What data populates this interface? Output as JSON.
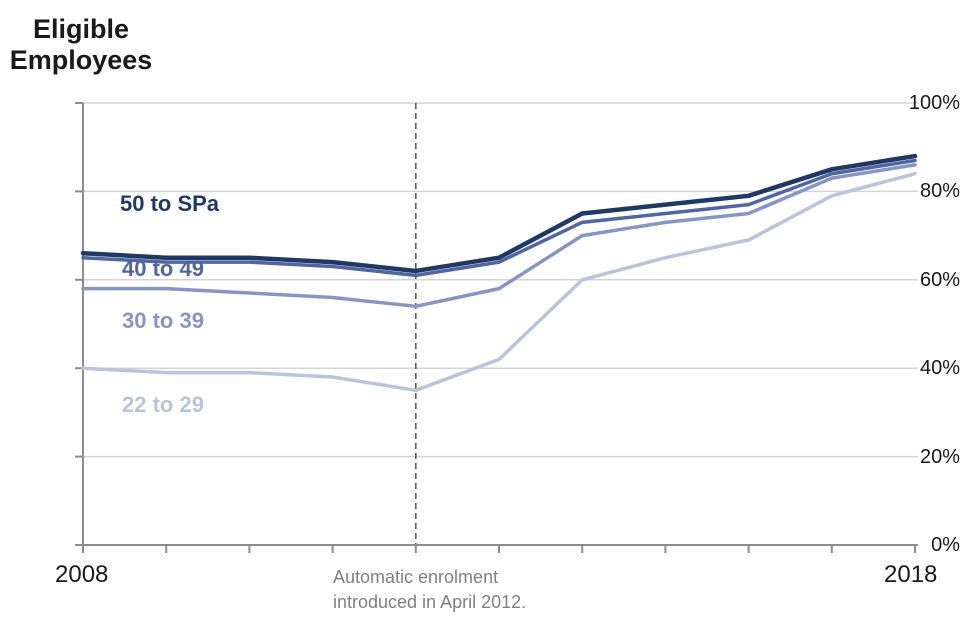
{
  "title": "Eligible\nEmployees",
  "annotation": {
    "line1": "Automatic enrolment",
    "line2": "introduced in April 2012."
  },
  "x_axis": {
    "start_label": "2008",
    "end_label": "2018"
  },
  "y_axis": {
    "tick_labels": [
      "100%",
      "80%",
      "60%",
      "40%",
      "20%",
      "0%"
    ]
  },
  "colors": {
    "axis": "#8c8c8c",
    "gridline": "#d4d4d4",
    "dashed_vline": "#595959",
    "annotation_text": "#808080",
    "axis_text": "#1a1a1a"
  },
  "chart_data": {
    "type": "line",
    "title": "Eligible Employees",
    "xlabel": "",
    "ylabel": "Eligible Employees (%)",
    "x": [
      2008,
      2009,
      2010,
      2011,
      2012,
      2013,
      2014,
      2015,
      2016,
      2017,
      2018
    ],
    "xlim": [
      2008,
      2018
    ],
    "ylim": [
      0,
      100
    ],
    "y_tick_step": 20,
    "grid": "horizontal",
    "legend_position": "inline-left",
    "vline": {
      "x": 2012,
      "style": "dashed",
      "note": "Automatic enrolment introduced in April 2012."
    },
    "series": [
      {
        "name": "50 to SPa",
        "color": "#1F3864",
        "width": 4.5,
        "values": [
          66,
          65,
          65,
          64,
          62,
          65,
          75,
          77,
          79,
          85,
          88
        ]
      },
      {
        "name": "40 to 49",
        "color": "#5165A1",
        "width": 3.5,
        "values": [
          65,
          64,
          64,
          63,
          61,
          64,
          73,
          75,
          77,
          84,
          87
        ]
      },
      {
        "name": "30 to 39",
        "color": "#8795C4",
        "width": 3.5,
        "values": [
          58,
          58,
          57,
          56,
          54,
          58,
          70,
          73,
          75,
          83,
          86
        ]
      },
      {
        "name": "22 to 29",
        "color": "#B8C3DC",
        "width": 3.5,
        "values": [
          40,
          39,
          39,
          38,
          35,
          42,
          60,
          65,
          69,
          79,
          84
        ]
      }
    ]
  }
}
